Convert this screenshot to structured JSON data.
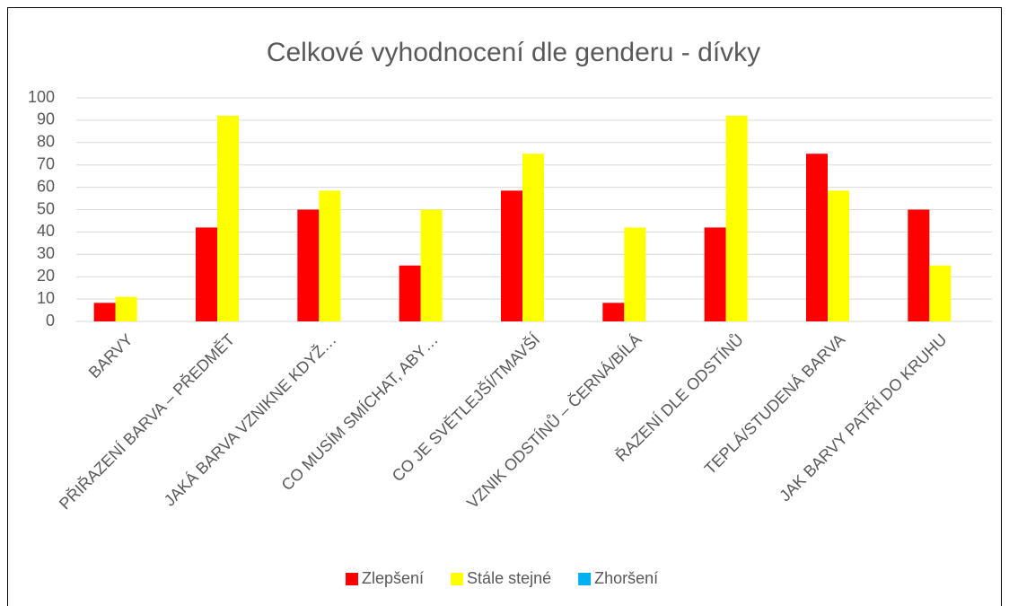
{
  "chart_data": {
    "type": "bar",
    "title": "Celkové vyhodnocení dle genderu - dívky",
    "categories": [
      "BARVY",
      "PŘIŘAZENÍ BARVA – PŘEDMĚT",
      "JAKÁ BARVA VZNIKNE KDYŽ…",
      "CO MUSÍM SMÍCHAT, ABY…",
      "CO JE SVĚTLEJŠÍ/TMAVŠÍ",
      "VZNIK ODSTÍNŮ – ČERNÁ/BÍLÁ",
      "ŘAZENÍ DLE ODSTÍNŮ",
      "TEPLÁ/STUDENÁ BARVA",
      "JAK BARVY PATŘÍ DO KRUHU"
    ],
    "series": [
      {
        "name": "Zlepšení",
        "color": "#ff0000",
        "values": [
          8.3,
          42,
          50,
          25,
          58.5,
          8.3,
          42,
          75,
          50
        ]
      },
      {
        "name": "Stále stejné",
        "color": "#ffff00",
        "values": [
          11,
          92,
          58.5,
          50,
          75,
          42,
          92,
          58.5,
          25
        ]
      },
      {
        "name": "Zhoršení",
        "color": "#00b0f0",
        "values": [
          0,
          0,
          0,
          0,
          0,
          0,
          0,
          0,
          0
        ]
      }
    ],
    "ylim": [
      0,
      100
    ],
    "yticks": [
      0,
      10,
      20,
      30,
      40,
      50,
      60,
      70,
      80,
      90,
      100
    ],
    "grid": true,
    "legend": "bottom"
  }
}
